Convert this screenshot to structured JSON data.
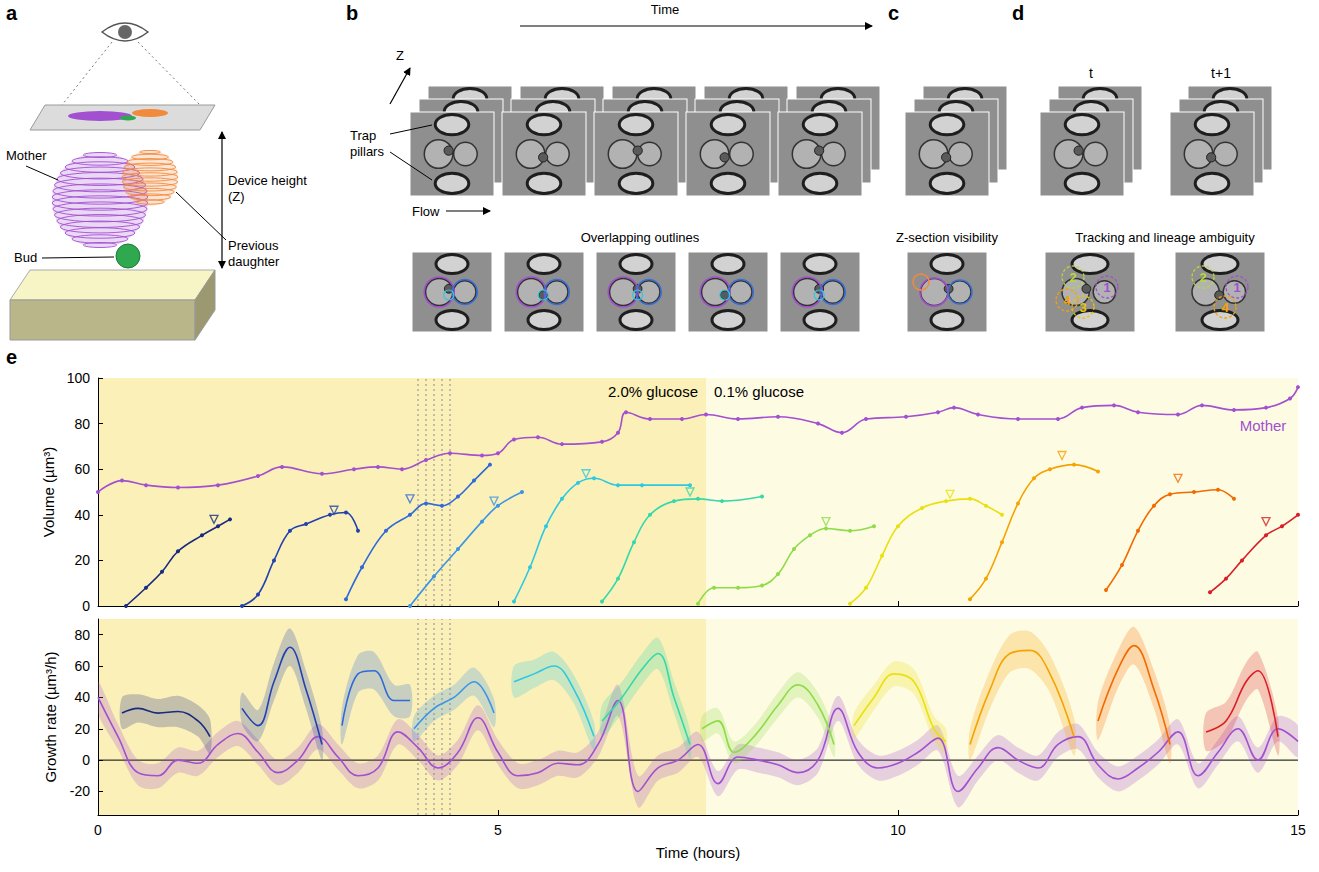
{
  "figure": {
    "a": {
      "letter": "a",
      "device_height": "Device height (Z)",
      "mother": "Mother",
      "previous_daughter": "Previous daughter",
      "bud": "Bud"
    },
    "b": {
      "letter": "b",
      "time": "Time",
      "z": "Z",
      "trap_pillars": "Trap pillars",
      "flow": "Flow",
      "caption": "Overlapping outlines"
    },
    "c": {
      "letter": "c",
      "caption": "Z-section visibility"
    },
    "d": {
      "letter": "d",
      "frames": [
        "t",
        "t+1"
      ],
      "caption": "Tracking and lineage ambiguity",
      "labels_t": [
        "1",
        "2",
        "3",
        "4"
      ],
      "labels_t1": [
        "1",
        "2",
        "4"
      ]
    }
  },
  "chart_data": [
    {
      "type": "line",
      "panel": "e",
      "y_label": "Volume (µm³)",
      "xlim": [
        0,
        15
      ],
      "xticks": [
        0,
        5,
        10,
        15
      ],
      "ylim": [
        0,
        100
      ],
      "yticks": [
        0,
        20,
        40,
        60,
        80,
        100
      ],
      "tick_labels": "y",
      "grid": false,
      "marker": "circle",
      "regions": [
        {
          "label": "2.0% glucose",
          "x": [
            0,
            7.6
          ],
          "color": "#fbf0b8"
        },
        {
          "label": "0.1% glucose",
          "x": [
            7.6,
            15
          ],
          "color": "#fefbe3"
        }
      ],
      "dotted_lines": [
        4.0,
        4.1,
        4.2,
        4.3,
        4.4
      ],
      "series": [
        {
          "name": "Mother",
          "color": "#a24fd0",
          "x": [
            0,
            0.3,
            0.6,
            1.0,
            1.5,
            2.0,
            2.3,
            2.8,
            3.2,
            3.5,
            3.8,
            4.1,
            4.4,
            4.8,
            5.0,
            5.2,
            5.5,
            5.8,
            6.3,
            6.5,
            6.6,
            6.9,
            7.3,
            7.6,
            8.0,
            8.5,
            9.0,
            9.3,
            9.6,
            10.1,
            10.5,
            10.7,
            11.0,
            11.5,
            12.0,
            12.3,
            12.7,
            13.0,
            13.5,
            13.8,
            14.2,
            14.6,
            14.9,
            15.0
          ],
          "values": [
            50,
            55,
            53,
            52,
            53,
            57,
            61,
            58,
            60,
            61,
            60,
            64,
            67,
            66,
            67,
            73,
            74,
            71,
            72,
            76,
            85,
            82,
            82,
            84,
            82,
            83,
            80,
            76,
            82,
            83,
            85,
            87,
            84,
            82,
            82,
            87,
            88,
            85,
            84,
            88,
            86,
            87,
            91,
            96
          ]
        },
        {
          "color": "#1a2a80",
          "x": [
            0.35,
            0.6,
            0.8,
            1.0,
            1.3,
            1.5,
            1.65
          ],
          "values": [
            0,
            8,
            15,
            24,
            31,
            35,
            38
          ],
          "marker_point": [
            1.45,
            38
          ]
        },
        {
          "color": "#2342b0",
          "x": [
            1.8,
            2.0,
            2.2,
            2.4,
            2.6,
            2.9,
            3.1,
            3.25
          ],
          "values": [
            0,
            5,
            20,
            33,
            36,
            40,
            41,
            33
          ],
          "marker_point": [
            2.95,
            42
          ]
        },
        {
          "color": "#2f6ad8",
          "x": [
            3.1,
            3.3,
            3.6,
            3.9,
            4.1,
            4.3,
            4.5,
            4.7,
            4.9
          ],
          "values": [
            3,
            17,
            33,
            40,
            45,
            44,
            48,
            55,
            62
          ],
          "marker_point": [
            3.9,
            47
          ]
        },
        {
          "color": "#3b95e6",
          "x": [
            3.9,
            4.2,
            4.5,
            4.8,
            5.0,
            5.3
          ],
          "values": [
            0,
            13,
            25,
            37,
            44,
            50
          ],
          "marker_point": [
            4.95,
            46
          ]
        },
        {
          "color": "#2fc8e0",
          "x": [
            5.2,
            5.4,
            5.6,
            5.8,
            6.0,
            6.2,
            6.5,
            6.8,
            7.4
          ],
          "values": [
            2,
            17,
            35,
            47,
            54,
            56,
            53,
            53,
            53
          ],
          "marker_point": [
            6.1,
            58
          ]
        },
        {
          "color": "#35d8a8",
          "x": [
            6.3,
            6.5,
            6.7,
            6.9,
            7.2,
            7.5,
            7.8,
            8.3
          ],
          "values": [
            2,
            12,
            28,
            40,
            46,
            47,
            46,
            48
          ],
          "marker_point": [
            7.4,
            50
          ]
        },
        {
          "color": "#8edc4a",
          "x": [
            7.5,
            7.7,
            8.0,
            8.3,
            8.5,
            8.7,
            8.9,
            9.1,
            9.4,
            9.7
          ],
          "values": [
            1,
            8,
            8,
            9,
            14,
            25,
            31,
            34,
            33,
            35
          ],
          "marker_point": [
            9.1,
            37
          ]
        },
        {
          "color": "#e8e010",
          "x": [
            9.4,
            9.6,
            9.8,
            10.0,
            10.3,
            10.6,
            10.9,
            11.1,
            11.3
          ],
          "values": [
            1,
            8,
            22,
            35,
            43,
            46,
            47,
            44,
            40
          ],
          "marker_point": [
            10.65,
            49
          ]
        },
        {
          "color": "#f5a300",
          "x": [
            10.9,
            11.1,
            11.3,
            11.5,
            11.7,
            11.9,
            12.2,
            12.5
          ],
          "values": [
            3,
            12,
            28,
            45,
            56,
            60,
            62,
            59
          ],
          "marker_point": [
            12.05,
            66
          ]
        },
        {
          "color": "#f26a00",
          "x": [
            12.6,
            12.8,
            13.0,
            13.2,
            13.4,
            13.7,
            14.0,
            14.2
          ],
          "values": [
            7,
            18,
            33,
            44,
            49,
            50,
            51,
            47
          ],
          "marker_point": [
            13.5,
            56
          ]
        },
        {
          "color": "#d81f26",
          "x": [
            13.9,
            14.1,
            14.3,
            14.6,
            14.8,
            15.0
          ],
          "values": [
            6,
            12,
            20,
            31,
            35,
            40
          ],
          "marker_point": [
            14.6,
            37
          ]
        }
      ]
    },
    {
      "type": "line",
      "y_label": "Growth rate (µm³/h)",
      "x_label": "Time (hours)",
      "xlim": [
        0,
        15
      ],
      "xticks": [
        0,
        5,
        10,
        15
      ],
      "ylim": [
        -35,
        90
      ],
      "yticks": [
        -20,
        0,
        20,
        40,
        60,
        80
      ],
      "grid": false,
      "reference_line": 0,
      "regions": [
        {
          "x": [
            0,
            7.6
          ],
          "color": "#fbf0b8"
        },
        {
          "x": [
            7.6,
            15
          ],
          "color": "#fefbe3"
        }
      ],
      "dotted_lines": [
        4.0,
        4.1,
        4.2,
        4.3,
        4.4
      ],
      "series": [
        {
          "color": "#a24fd0",
          "x": [
            0,
            0.25,
            0.5,
            0.75,
            1,
            1.25,
            1.5,
            1.75,
            2,
            2.25,
            2.5,
            2.75,
            3,
            3.25,
            3.5,
            3.75,
            4,
            4.25,
            4.5,
            4.75,
            5,
            5.25,
            5.5,
            5.75,
            6,
            6.25,
            6.5,
            6.75,
            7,
            7.25,
            7.5,
            7.75,
            8,
            8.25,
            8.5,
            8.75,
            9,
            9.25,
            9.5,
            9.75,
            10,
            10.25,
            10.5,
            10.75,
            11,
            11.25,
            11.5,
            11.75,
            12,
            12.25,
            12.5,
            12.75,
            13,
            13.25,
            13.5,
            13.75,
            14,
            14.25,
            14.5,
            14.75,
            15
          ],
          "values": [
            40,
            15,
            -8,
            -10,
            0,
            -2,
            10,
            17,
            5,
            -8,
            0,
            15,
            2,
            -10,
            -5,
            18,
            8,
            -5,
            5,
            27,
            5,
            -10,
            -8,
            -2,
            -3,
            10,
            38,
            -20,
            -5,
            0,
            10,
            -15,
            2,
            0,
            -3,
            -8,
            0,
            33,
            5,
            -5,
            -2,
            5,
            14,
            -20,
            -5,
            8,
            0,
            -5,
            10,
            15,
            -3,
            -12,
            -5,
            5,
            18,
            -10,
            5,
            20,
            0,
            20,
            12
          ],
          "errors": [
            10,
            8,
            8,
            8,
            8,
            8,
            8,
            8,
            8,
            8,
            8,
            8,
            8,
            8,
            8,
            8,
            8,
            8,
            8,
            8,
            8,
            8,
            8,
            8,
            8,
            8,
            10,
            10,
            8,
            8,
            8,
            8,
            8,
            8,
            8,
            8,
            8,
            8,
            8,
            8,
            8,
            8,
            8,
            10,
            8,
            8,
            8,
            8,
            8,
            8,
            8,
            8,
            8,
            8,
            8,
            8,
            8,
            8,
            8,
            8,
            10
          ]
        },
        {
          "color": "#1a2a80",
          "x": [
            0.3,
            0.5,
            0.75,
            1.0,
            1.25,
            1.4
          ],
          "values": [
            30,
            33,
            30,
            31,
            25,
            15
          ],
          "errors": [
            10,
            9,
            9,
            10,
            10,
            11
          ]
        },
        {
          "color": "#2342b0",
          "x": [
            1.8,
            2.0,
            2.2,
            2.4,
            2.6,
            2.8
          ],
          "values": [
            33,
            22,
            50,
            72,
            45,
            10
          ],
          "errors": [
            10,
            10,
            12,
            12,
            12,
            10
          ]
        },
        {
          "color": "#2f6ad8",
          "x": [
            3.05,
            3.25,
            3.45,
            3.7,
            3.9
          ],
          "values": [
            22,
            55,
            57,
            38,
            38
          ],
          "errors": [
            12,
            12,
            12,
            10,
            10
          ]
        },
        {
          "color": "#3b95e6",
          "x": [
            3.95,
            4.2,
            4.45,
            4.7,
            4.95
          ],
          "values": [
            20,
            33,
            40,
            50,
            30
          ],
          "errors": [
            8,
            8,
            8,
            9,
            9
          ]
        },
        {
          "color": "#2fc8e0",
          "x": [
            5.2,
            5.45,
            5.7,
            5.95,
            6.2
          ],
          "values": [
            50,
            55,
            60,
            45,
            15
          ],
          "errors": [
            10,
            9,
            9,
            9,
            9
          ]
        },
        {
          "color": "#35d8a8",
          "x": [
            6.3,
            6.55,
            6.8,
            7.0,
            7.2,
            7.4
          ],
          "values": [
            25,
            40,
            58,
            68,
            40,
            10
          ],
          "errors": [
            10,
            10,
            10,
            10,
            10,
            9
          ]
        },
        {
          "color": "#8edc4a",
          "x": [
            7.55,
            7.75,
            7.95,
            8.2,
            8.5,
            8.75,
            9.0,
            9.2
          ],
          "values": [
            20,
            25,
            5,
            15,
            35,
            48,
            35,
            10
          ],
          "errors": [
            8,
            8,
            7,
            7,
            8,
            8,
            8,
            8
          ]
        },
        {
          "color": "#e8e010",
          "x": [
            9.45,
            9.7,
            9.95,
            10.2,
            10.45,
            10.6
          ],
          "values": [
            22,
            40,
            55,
            50,
            20,
            12
          ],
          "errors": [
            8,
            8,
            8,
            8,
            8,
            8
          ]
        },
        {
          "color": "#f5a300",
          "x": [
            10.9,
            11.15,
            11.4,
            11.65,
            11.9,
            12.2
          ],
          "values": [
            10,
            45,
            68,
            70,
            55,
            15
          ],
          "errors": [
            10,
            12,
            12,
            12,
            12,
            12
          ]
        },
        {
          "color": "#f26a00",
          "x": [
            12.5,
            12.75,
            12.95,
            13.2,
            13.4
          ],
          "values": [
            25,
            58,
            73,
            45,
            10
          ],
          "errors": [
            12,
            12,
            12,
            12,
            12
          ]
        },
        {
          "color": "#d81f26",
          "x": [
            13.85,
            14.1,
            14.35,
            14.5,
            14.75
          ],
          "values": [
            18,
            25,
            50,
            57,
            15
          ],
          "errors": [
            12,
            12,
            12,
            12,
            12
          ]
        }
      ]
    }
  ]
}
